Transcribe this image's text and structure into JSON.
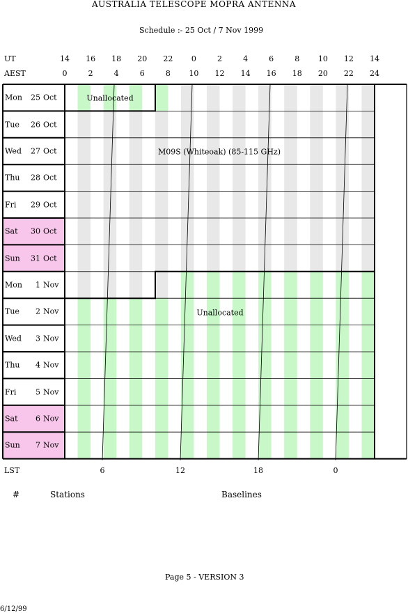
{
  "header": {
    "title": "AUSTRALIA TELESCOPE MOPRA ANTENNA",
    "schedule": "Schedule :- 25 Oct / 7 Nov 1999"
  },
  "axes": {
    "ut_label": "UT",
    "ut_ticks": [
      "14",
      "16",
      "18",
      "20",
      "22",
      "0",
      "2",
      "4",
      "6",
      "8",
      "10",
      "12",
      "14"
    ],
    "aest_label": "AEST",
    "aest_ticks": [
      "0",
      "2",
      "4",
      "6",
      "8",
      "10",
      "12",
      "14",
      "16",
      "18",
      "20",
      "22",
      "24"
    ],
    "lst_label": "LST",
    "lst_ticks": [
      "6",
      "12",
      "18",
      "0"
    ]
  },
  "days": [
    {
      "dow": "Mon",
      "date": "25",
      "month": "Oct",
      "weekend": false
    },
    {
      "dow": "Tue",
      "date": "26",
      "month": "Oct",
      "weekend": false
    },
    {
      "dow": "Wed",
      "date": "27",
      "month": "Oct",
      "weekend": false
    },
    {
      "dow": "Thu",
      "date": "28",
      "month": "Oct",
      "weekend": false
    },
    {
      "dow": "Fri",
      "date": "29",
      "month": "Oct",
      "weekend": false
    },
    {
      "dow": "Sat",
      "date": "30",
      "month": "Oct",
      "weekend": true
    },
    {
      "dow": "Sun",
      "date": "31",
      "month": "Oct",
      "weekend": true
    },
    {
      "dow": "Mon",
      "date": "1",
      "month": "Nov",
      "weekend": false
    },
    {
      "dow": "Tue",
      "date": "2",
      "month": "Nov",
      "weekend": false
    },
    {
      "dow": "Wed",
      "date": "3",
      "month": "Nov",
      "weekend": false
    },
    {
      "dow": "Thu",
      "date": "4",
      "month": "Nov",
      "weekend": false
    },
    {
      "dow": "Fri",
      "date": "5",
      "month": "Nov",
      "weekend": false
    },
    {
      "dow": "Sat",
      "date": "6",
      "month": "Nov",
      "weekend": true
    },
    {
      "dow": "Sun",
      "date": "7",
      "month": "Nov",
      "weekend": true
    }
  ],
  "blocks": {
    "unallocated_top": "Unallocated",
    "main_project": "M09S (Whiteoak) (85-115 GHz)",
    "unallocated_bottom": "Unallocated"
  },
  "footer_labels": {
    "hash": "#",
    "stations": "Stations",
    "baselines": "Baselines",
    "page": "Page 5 - VERSION 3",
    "date": "6/12/99"
  },
  "colors": {
    "weekend": "#f7c6ea",
    "unallocated_stripe": "#c8f7c8",
    "allocated_stripe": "#e8e8e8",
    "lines": "#000000"
  }
}
